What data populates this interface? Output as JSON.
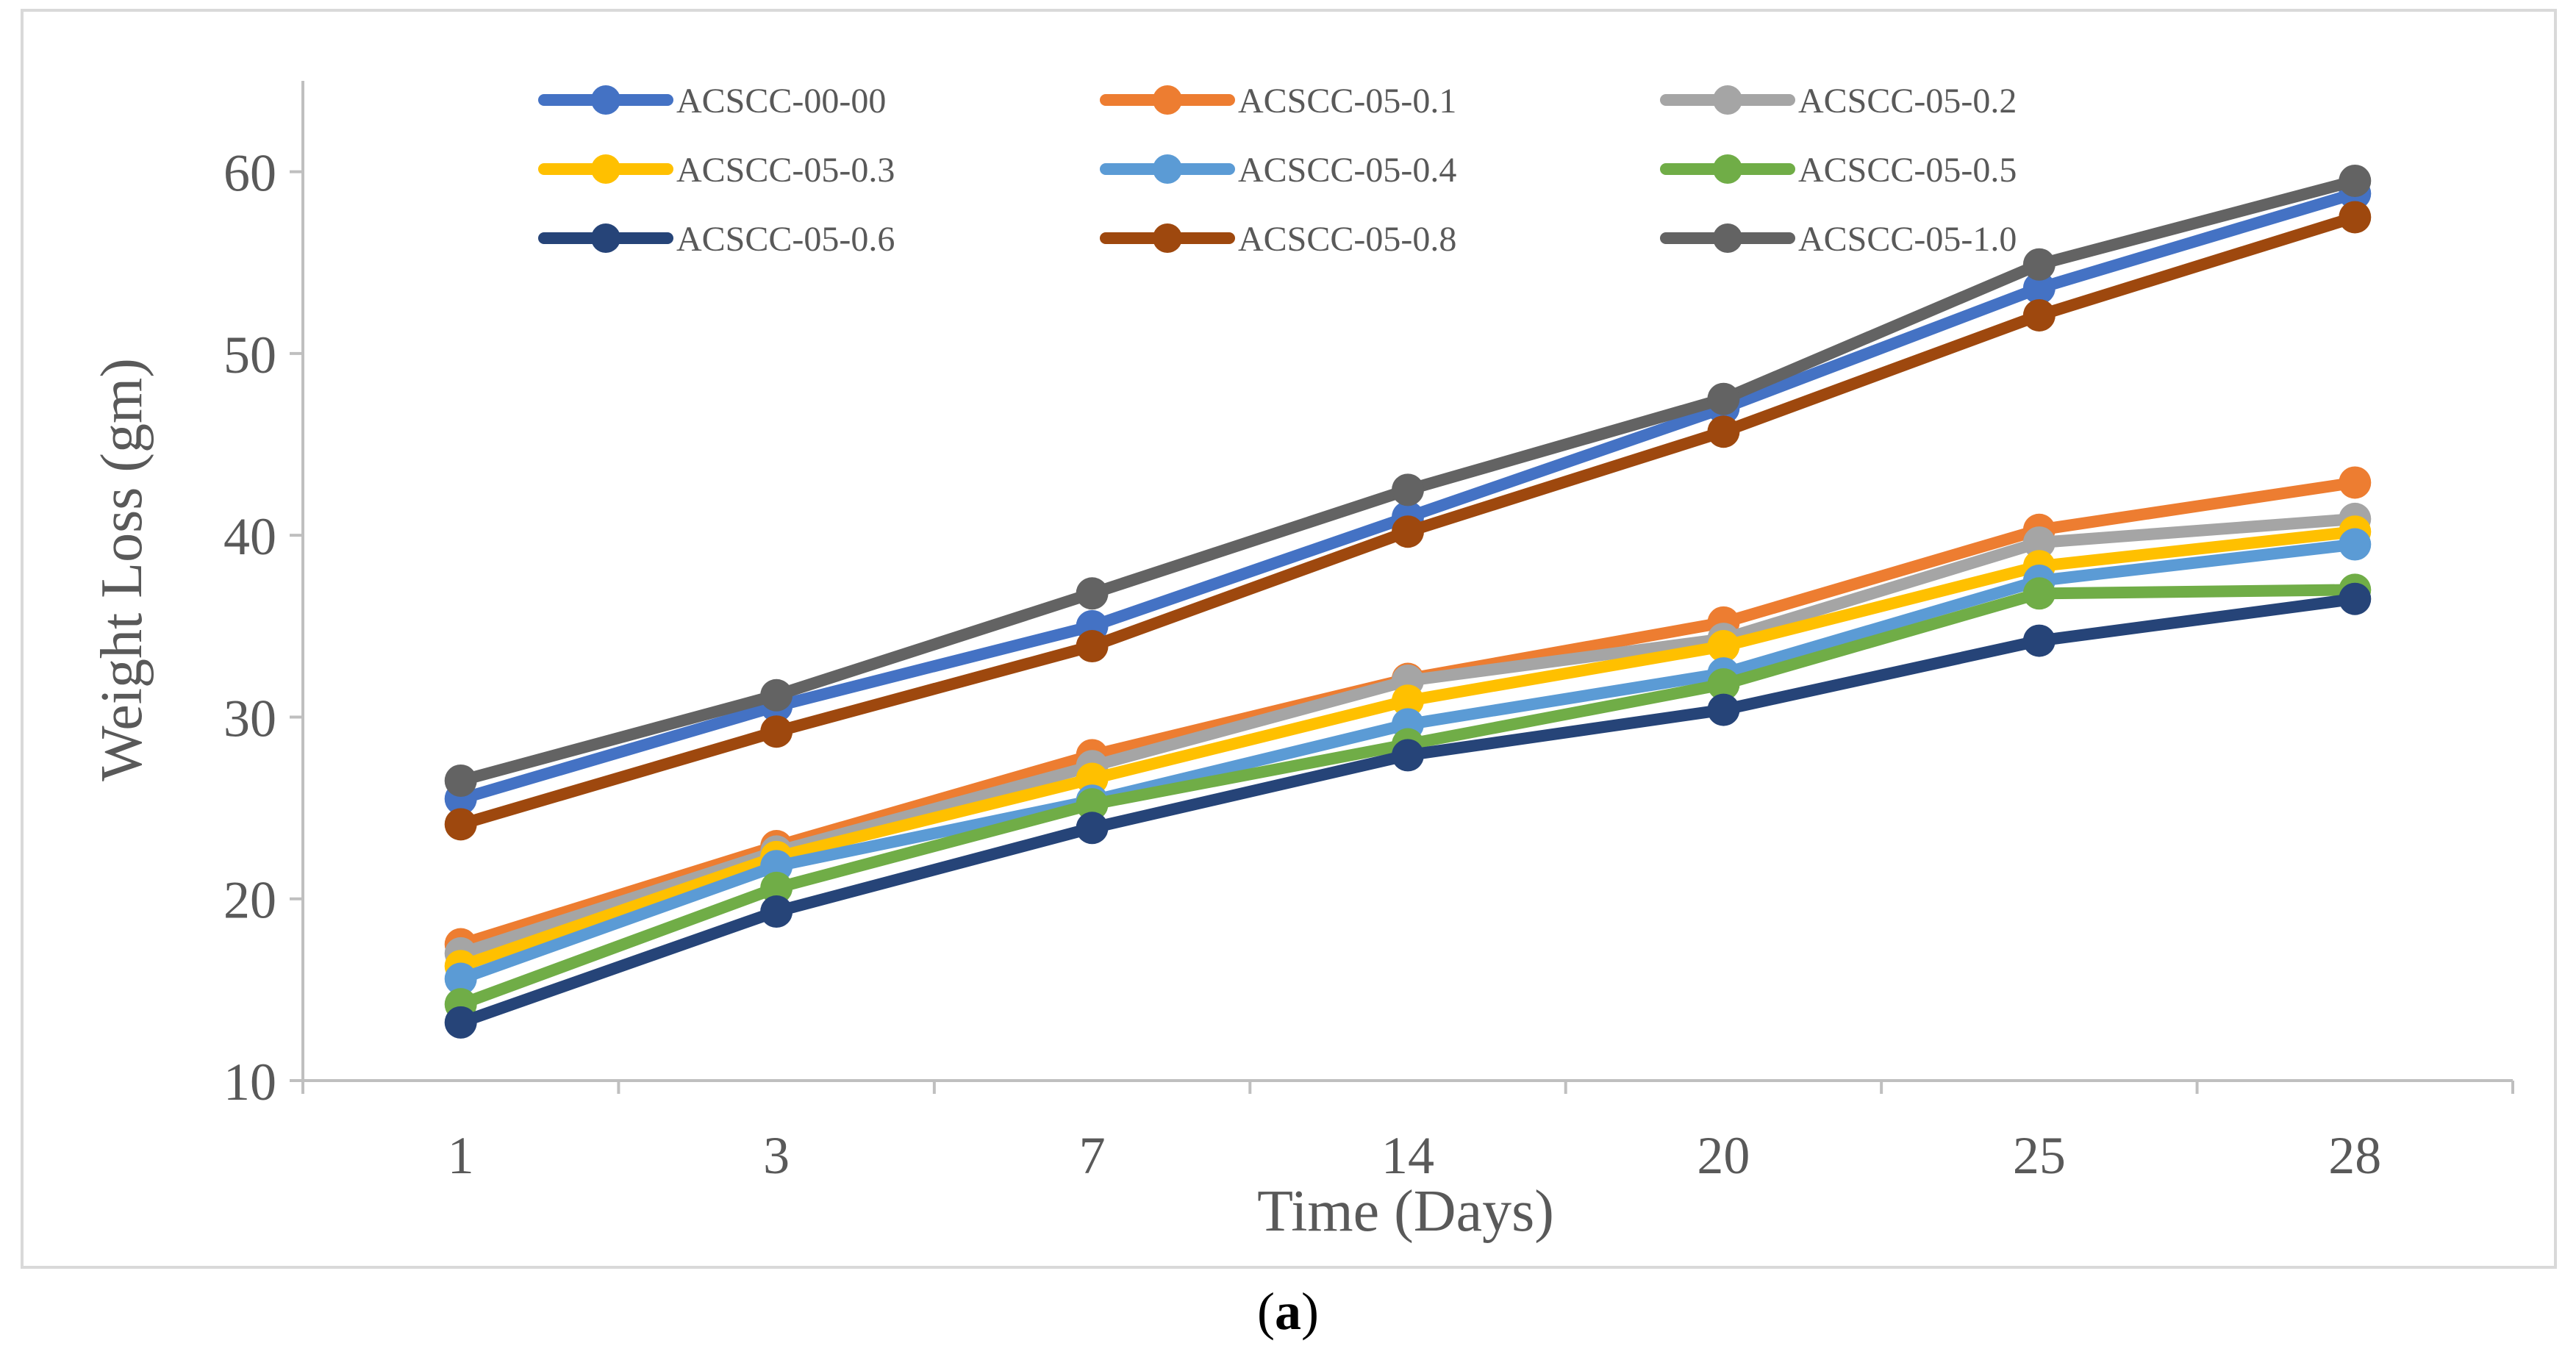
{
  "chart_data": {
    "type": "line",
    "title": "",
    "xlabel": "Time (Days)",
    "ylabel": "Weight Loss (gm)",
    "categories": [
      "1",
      "3",
      "7",
      "14",
      "20",
      "25",
      "28"
    ],
    "ylim": [
      10,
      65
    ],
    "yticks": [
      10,
      20,
      30,
      40,
      50,
      60
    ],
    "grid": false,
    "legend_position": "top",
    "series": [
      {
        "name": "ACSCC-00-00",
        "color": "#4472C4",
        "values": [
          25.5,
          30.6,
          35.0,
          41.0,
          47.0,
          53.6,
          58.8
        ]
      },
      {
        "name": "ACSCC-05-0.1",
        "color": "#ED7D31",
        "values": [
          17.5,
          22.9,
          27.9,
          32.1,
          35.2,
          40.3,
          42.9
        ]
      },
      {
        "name": "ACSCC-05-0.2",
        "color": "#A5A5A5",
        "values": [
          17.0,
          22.6,
          27.3,
          32.0,
          34.3,
          39.6,
          40.9
        ]
      },
      {
        "name": "ACSCC-05-0.3",
        "color": "#FFC000",
        "values": [
          16.3,
          22.3,
          26.6,
          30.9,
          33.9,
          38.3,
          40.2
        ]
      },
      {
        "name": "ACSCC-05-0.4",
        "color": "#5B9BD5",
        "values": [
          15.6,
          21.8,
          25.4,
          29.6,
          32.4,
          37.5,
          39.5
        ]
      },
      {
        "name": "ACSCC-05-0.5",
        "color": "#70AD47",
        "values": [
          14.2,
          20.6,
          25.2,
          28.5,
          31.8,
          36.8,
          37.0
        ]
      },
      {
        "name": "ACSCC-05-0.6",
        "color": "#264478",
        "values": [
          13.2,
          19.3,
          23.9,
          27.9,
          30.4,
          34.2,
          36.5
        ]
      },
      {
        "name": "ACSCC-05-0.8",
        "color": "#9E480E",
        "values": [
          24.1,
          29.2,
          33.9,
          40.2,
          45.7,
          52.1,
          57.5
        ]
      },
      {
        "name": "ACSCC-05-1.0",
        "color": "#636363",
        "values": [
          26.5,
          31.2,
          36.8,
          42.5,
          47.5,
          54.9,
          59.5
        ]
      }
    ]
  },
  "caption": {
    "open": "(",
    "letter": "a",
    "close": ")"
  }
}
